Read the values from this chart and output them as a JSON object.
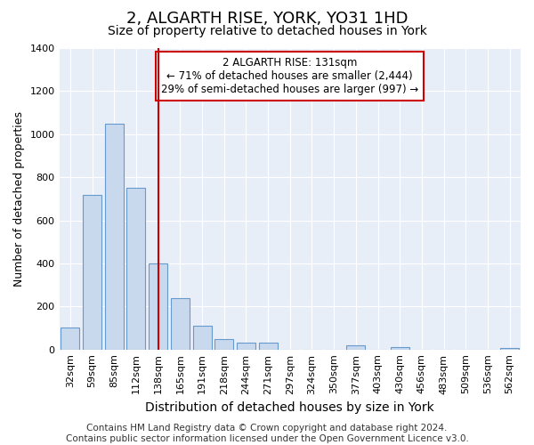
{
  "title": "2, ALGARTH RISE, YORK, YO31 1HD",
  "subtitle": "Size of property relative to detached houses in York",
  "xlabel": "Distribution of detached houses by size in York",
  "ylabel": "Number of detached properties",
  "bar_color": "#c8d9ee",
  "bar_edge_color": "#6699cc",
  "background_color": "#e8eef8",
  "grid_color": "#ffffff",
  "fig_bg_color": "#ffffff",
  "categories": [
    "32sqm",
    "59sqm",
    "85sqm",
    "112sqm",
    "138sqm",
    "165sqm",
    "191sqm",
    "218sqm",
    "244sqm",
    "271sqm",
    "297sqm",
    "324sqm",
    "350sqm",
    "377sqm",
    "403sqm",
    "430sqm",
    "456sqm",
    "483sqm",
    "509sqm",
    "536sqm",
    "562sqm"
  ],
  "values": [
    100,
    720,
    1050,
    750,
    400,
    240,
    110,
    50,
    30,
    30,
    0,
    0,
    0,
    20,
    0,
    10,
    0,
    0,
    0,
    0,
    5
  ],
  "ylim": [
    0,
    1400
  ],
  "yticks": [
    0,
    200,
    400,
    600,
    800,
    1000,
    1200,
    1400
  ],
  "property_line_x": 4.0,
  "property_line_color": "#cc0000",
  "annotation_text": "2 ALGARTH RISE: 131sqm\n← 71% of detached houses are smaller (2,444)\n29% of semi-detached houses are larger (997) →",
  "annotation_fontsize": 8.5,
  "annotation_box_color": "#cc0000",
  "footer_text": "Contains HM Land Registry data © Crown copyright and database right 2024.\nContains public sector information licensed under the Open Government Licence v3.0.",
  "title_fontsize": 13,
  "subtitle_fontsize": 10,
  "xlabel_fontsize": 10,
  "ylabel_fontsize": 9,
  "tick_fontsize": 8,
  "footer_fontsize": 7.5
}
